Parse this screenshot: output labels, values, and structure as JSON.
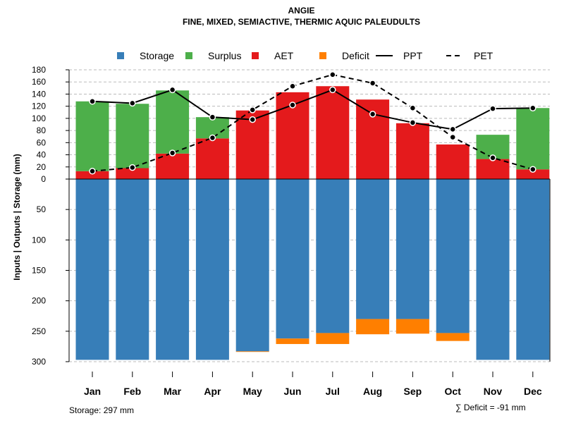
{
  "chart_data": {
    "type": "bar",
    "title": "ANGIE",
    "subtitle": "FINE, MIXED, SEMIACTIVE, THERMIC AQUIC PALEUDULTS",
    "ylabel": "Inputs | Outputs | Storage    (mm)",
    "xlabel": "",
    "categories": [
      "Jan",
      "Feb",
      "Mar",
      "Apr",
      "May",
      "Jun",
      "Jul",
      "Aug",
      "Sep",
      "Oct",
      "Nov",
      "Dec"
    ],
    "ylim_upper": [
      0,
      180
    ],
    "ylim_lower": [
      0,
      300
    ],
    "upper_ticks": [
      0,
      20,
      40,
      60,
      80,
      100,
      120,
      140,
      160,
      180
    ],
    "lower_ticks": [
      0,
      50,
      100,
      150,
      200,
      250,
      300
    ],
    "grid": true,
    "legend_position": "top",
    "legend": [
      {
        "label": "Storage",
        "kind": "square",
        "color": "#377EB8"
      },
      {
        "label": "Surplus",
        "kind": "square",
        "color": "#4DAF4A"
      },
      {
        "label": "AET",
        "kind": "square",
        "color": "#E41A1C"
      },
      {
        "label": "Deficit",
        "kind": "square",
        "color": "#FF7F00"
      },
      {
        "label": "PPT",
        "kind": "line",
        "color": "#000000"
      },
      {
        "label": "PET",
        "kind": "dash",
        "color": "#000000"
      }
    ],
    "series": [
      {
        "name": "AET",
        "values": [
          13,
          18,
          42,
          67,
          113,
          143,
          153,
          131,
          92,
          57,
          33,
          16
        ]
      },
      {
        "name": "Surplus",
        "values": [
          115,
          106,
          104,
          35,
          0,
          0,
          0,
          0,
          0,
          0,
          40,
          101
        ]
      },
      {
        "name": "Storage",
        "values": [
          297,
          297,
          297,
          297,
          283,
          262,
          253,
          230,
          230,
          253,
          297,
          297
        ]
      },
      {
        "name": "Deficit",
        "values": [
          0,
          0,
          0,
          0,
          1,
          9,
          18,
          25,
          24,
          13,
          0,
          0
        ]
      },
      {
        "name": "PPT",
        "values": [
          128,
          125,
          147,
          102,
          98,
          122,
          147,
          107,
          93,
          82,
          116,
          117
        ]
      },
      {
        "name": "PET",
        "values": [
          13,
          19,
          43,
          68,
          114,
          153,
          172,
          158,
          117,
          69,
          35,
          16
        ]
      }
    ]
  },
  "footer": {
    "storage_label": "Storage: 297 mm",
    "deficit_label": "∑ Deficit = -91 mm"
  }
}
